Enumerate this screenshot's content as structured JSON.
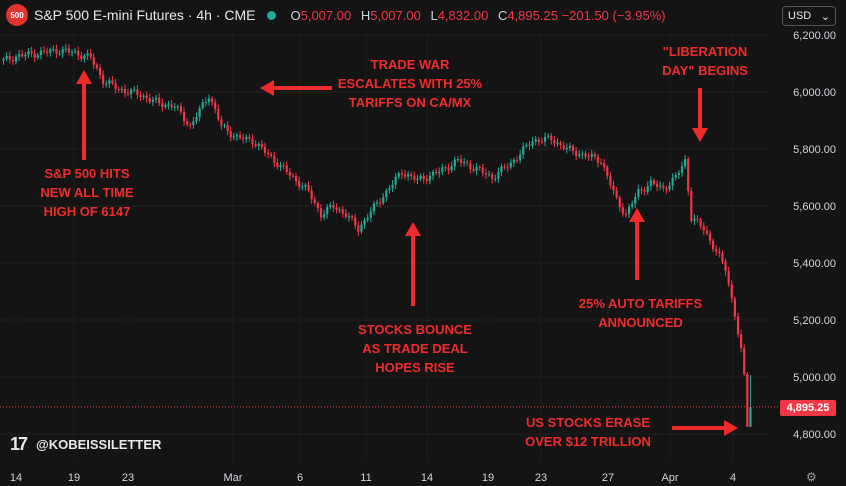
{
  "header": {
    "badge": "500",
    "title": "S&P 500 E-mini Futures · 4h · CME",
    "ohlc": [
      {
        "label": "O",
        "value": "5,007.00"
      },
      {
        "label": "H",
        "value": "5,007.00"
      },
      {
        "label": "L",
        "value": "4,832.00"
      },
      {
        "label": "C",
        "value": "4,895.25 −201.50 (−3.95%)"
      }
    ],
    "currency": "USD"
  },
  "watermark": "@KOBEISSILETTER",
  "price_tag": "4,895.25",
  "colors": {
    "up": "#22ab94",
    "down": "#f23645",
    "annotation": "#ef2c2c",
    "background": "#141414"
  },
  "annotations": [
    {
      "id": "ath",
      "text": "S&P 500 HITS\nNEW ALL TIME\nHIGH OF 6147"
    },
    {
      "id": "tradewar",
      "text": "TRADE WAR\nESCALATES WITH 25%\nTARIFFS ON CA/MX"
    },
    {
      "id": "bounce",
      "text": "STOCKS BOUNCE\nAS TRADE DEAL\nHOPES RISE"
    },
    {
      "id": "auto",
      "text": "25% AUTO TARIFFS\nANNOUNCED"
    },
    {
      "id": "liberation",
      "text": "\"LIBERATION\nDAY\" BEGINS"
    },
    {
      "id": "erase",
      "text": "US STOCKS ERASE\nOVER $12 TRILLION"
    }
  ],
  "chart_data": {
    "type": "candlestick",
    "ylim": [
      4700,
      6250
    ],
    "yticks": [
      4800,
      5000,
      5200,
      5400,
      5600,
      5800,
      6000,
      6200
    ],
    "ytick_labels": [
      "4,800.00",
      "5,000.00",
      "5,200.00",
      "5,400.00",
      "5,600.00",
      "5,800.00",
      "6,000.00",
      "6,200.00"
    ],
    "xticks": [
      "14",
      "19",
      "23",
      "Mar",
      "6",
      "11",
      "14",
      "19",
      "23",
      "27",
      "Apr",
      "4"
    ],
    "last_close": 4895.25,
    "keypoints": [
      [
        0,
        6110
      ],
      [
        4,
        6125
      ],
      [
        10,
        6135
      ],
      [
        18,
        6147
      ],
      [
        22,
        6140
      ],
      [
        28,
        6120
      ],
      [
        32,
        6040
      ],
      [
        37,
        6010
      ],
      [
        44,
        5990
      ],
      [
        50,
        5960
      ],
      [
        55,
        5950
      ],
      [
        60,
        5880
      ],
      [
        66,
        5990
      ],
      [
        70,
        5880
      ],
      [
        75,
        5840
      ],
      [
        80,
        5830
      ],
      [
        87,
        5760
      ],
      [
        93,
        5700
      ],
      [
        98,
        5650
      ],
      [
        102,
        5570
      ],
      [
        106,
        5600
      ],
      [
        110,
        5570
      ],
      [
        114,
        5520
      ],
      [
        118,
        5580
      ],
      [
        123,
        5650
      ],
      [
        128,
        5720
      ],
      [
        133,
        5690
      ],
      [
        140,
        5720
      ],
      [
        146,
        5760
      ],
      [
        152,
        5730
      ],
      [
        157,
        5700
      ],
      [
        163,
        5750
      ],
      [
        170,
        5830
      ],
      [
        176,
        5835
      ],
      [
        181,
        5800
      ],
      [
        186,
        5780
      ],
      [
        192,
        5760
      ],
      [
        197,
        5620
      ],
      [
        200,
        5570
      ],
      [
        204,
        5650
      ],
      [
        208,
        5680
      ],
      [
        212,
        5660
      ],
      [
        216,
        5700
      ],
      [
        219,
        5760
      ],
      [
        221,
        5560
      ],
      [
        225,
        5520
      ],
      [
        229,
        5440
      ],
      [
        232,
        5380
      ],
      [
        235,
        5220
      ],
      [
        237,
        5090
      ],
      [
        238,
        5000
      ],
      [
        239,
        4832
      ],
      [
        240,
        4895
      ]
    ]
  }
}
